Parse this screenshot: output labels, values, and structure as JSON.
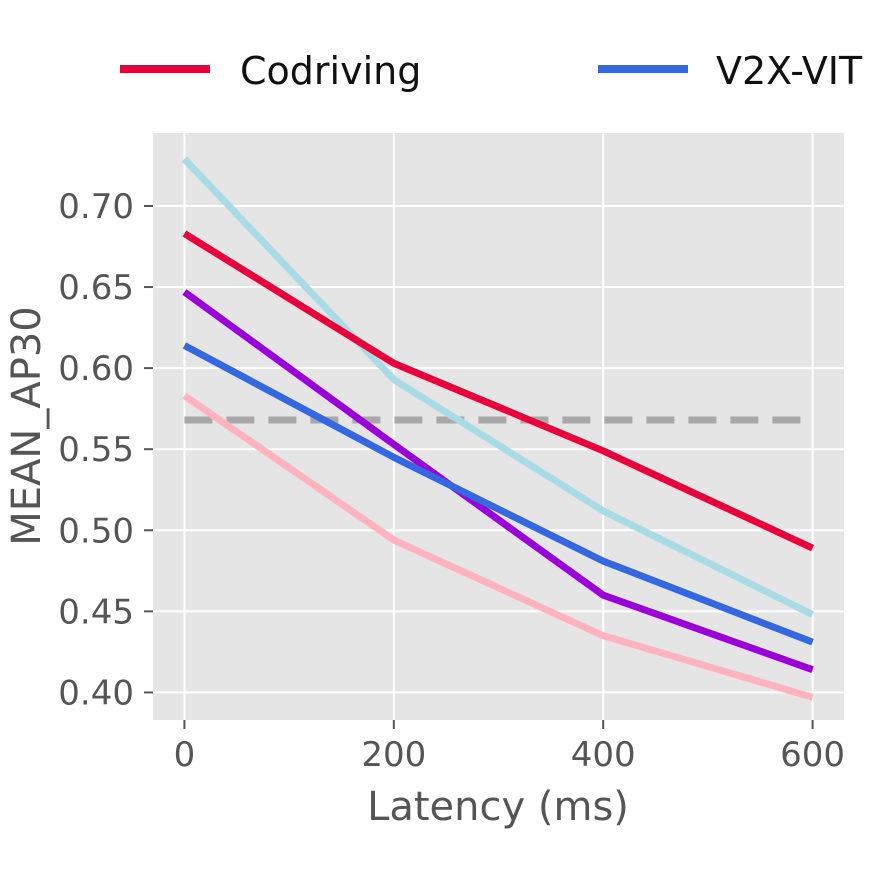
{
  "chart_data": {
    "type": "line",
    "title": "",
    "xlabel": "Latency (ms)",
    "ylabel": "MEAN_AP30",
    "x": [
      0,
      200,
      400,
      600
    ],
    "xticks": [
      0,
      200,
      400,
      600
    ],
    "xtick_labels": [
      "0",
      "200",
      "400",
      "600"
    ],
    "yticks": [
      0.4,
      0.45,
      0.5,
      0.55,
      0.6,
      0.65,
      0.7
    ],
    "ytick_labels": [
      "0.40",
      "0.45",
      "0.50",
      "0.55",
      "0.60",
      "0.65",
      "0.70"
    ],
    "xlim": [
      -30,
      630
    ],
    "ylim": [
      0.383,
      0.745
    ],
    "grid": true,
    "legend_position": "top",
    "series": [
      {
        "name": "Codriving",
        "color": "#e8003a",
        "values": [
          0.683,
          0.603,
          0.549,
          0.489
        ],
        "in_legend": true
      },
      {
        "name": "V2X-VIT",
        "color": "#3568e0",
        "values": [
          0.614,
          0.545,
          0.481,
          0.431
        ],
        "in_legend": true
      },
      {
        "name": "",
        "color": "#a9dbe6",
        "values": [
          0.729,
          0.593,
          0.512,
          0.448
        ],
        "in_legend": false
      },
      {
        "name": "",
        "color": "#9a00d8",
        "values": [
          0.647,
          0.553,
          0.46,
          0.414
        ],
        "in_legend": false
      },
      {
        "name": "",
        "color": "#ffb3bf",
        "values": [
          0.583,
          0.494,
          0.435,
          0.397
        ],
        "in_legend": false
      }
    ],
    "reference_line": {
      "type": "horizontal",
      "value": 0.568,
      "x_range": [
        0,
        600
      ],
      "color": "#a8a8a8",
      "style": "dashed"
    }
  }
}
